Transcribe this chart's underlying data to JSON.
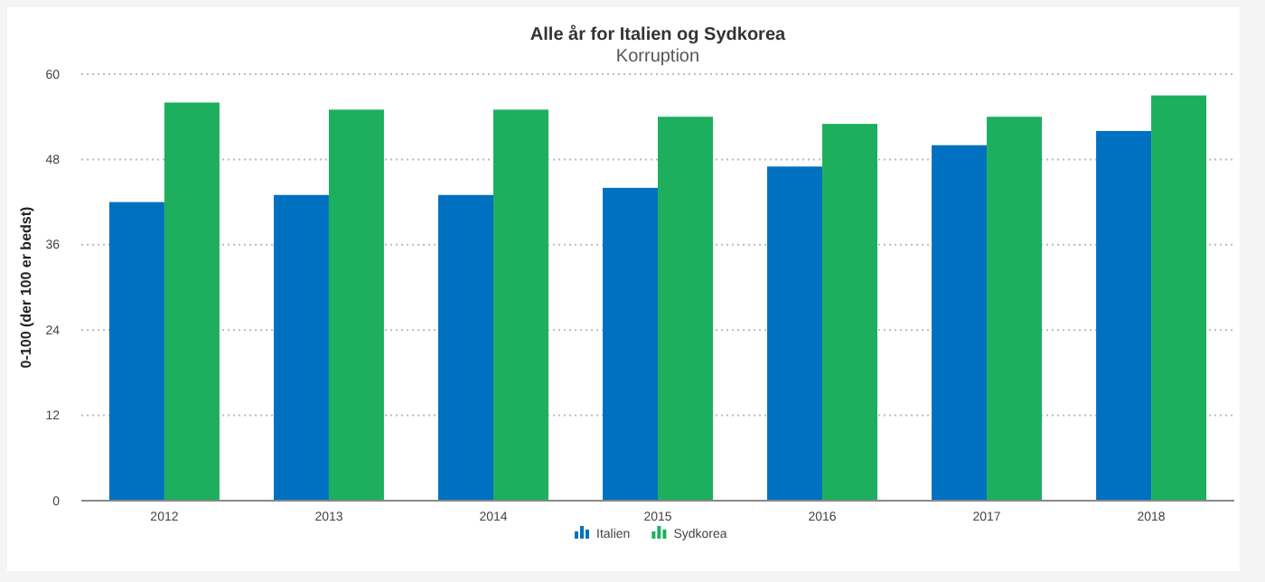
{
  "chart_data": {
    "type": "bar",
    "title": "Alle år for Italien og Sydkorea",
    "subtitle": "Korruption",
    "ylabel": "0-100 (der 100 er bedst)",
    "categories": [
      "2012",
      "2013",
      "2014",
      "2015",
      "2016",
      "2017",
      "2018"
    ],
    "series": [
      {
        "name": "Italien",
        "color": "#0070c0",
        "values": [
          42,
          43,
          43,
          44,
          47,
          50,
          52
        ]
      },
      {
        "name": "Sydkorea",
        "color": "#1daf5e",
        "values": [
          56,
          55,
          55,
          54,
          53,
          54,
          57
        ]
      }
    ],
    "ylim": [
      0,
      60
    ],
    "yticks": [
      0,
      12,
      24,
      36,
      48,
      60
    ],
    "grid": "y",
    "legend": "bottom"
  }
}
